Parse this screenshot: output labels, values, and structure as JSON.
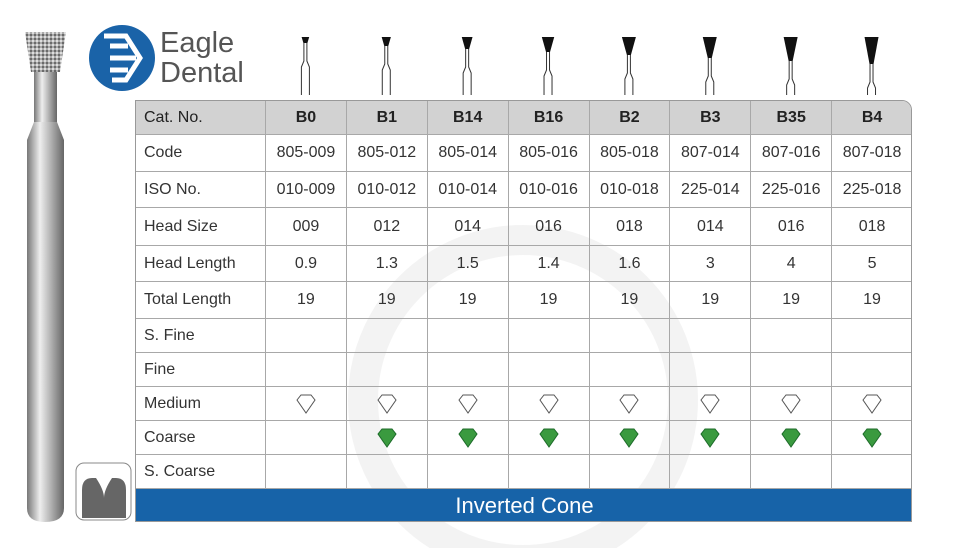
{
  "brand": {
    "line1": "Eagle",
    "line2": "Dental"
  },
  "table": {
    "header": [
      "Cat. No.",
      "B0",
      "B1",
      "B14",
      "B16",
      "B2",
      "B3",
      "B35",
      "B4"
    ],
    "rows": [
      [
        "Code",
        "805-009",
        "805-012",
        "805-014",
        "805-016",
        "805-018",
        "807-014",
        "807-016",
        "807-018"
      ],
      [
        "ISO No.",
        "010-009",
        "010-012",
        "010-014",
        "010-016",
        "010-018",
        "225-014",
        "225-016",
        "225-018"
      ],
      [
        "Head Size",
        "009",
        "012",
        "014",
        "016",
        "018",
        "014",
        "016",
        "018"
      ],
      [
        "Head Length",
        "0.9",
        "1.3",
        "1.5",
        "1.4",
        "1.6",
        "3",
        "4",
        "5"
      ],
      [
        "Total Length",
        "19",
        "19",
        "19",
        "19",
        "19",
        "19",
        "19",
        "19"
      ]
    ],
    "grit_rows": [
      "S. Fine",
      "Fine",
      "Medium",
      "Coarse",
      "S. Coarse"
    ]
  },
  "footer": "Inverted Cone"
}
